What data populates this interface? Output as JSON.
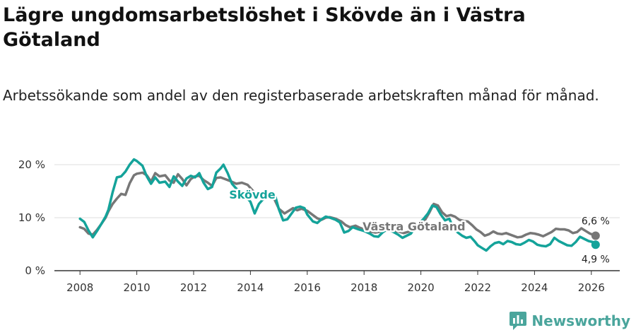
{
  "title": "Lägre ungdomsarbetslöshet i Skövde än i Västra Götaland",
  "subtitle": "Arbetssökande som andel av den registerbaserade arbetskraften månad för månad.",
  "brand": {
    "name": "Newsworthy"
  },
  "colors": {
    "skovde": "#14a39a",
    "vastra_gotaland": "#777777",
    "grid": "#dddddd"
  },
  "chart_data": {
    "type": "line",
    "title": "Lägre ungdomsarbetslöshet i Skövde än i Västra Götaland",
    "subtitle": "Arbetssökande som andel av den registerbaserade arbetskraften månad för månad.",
    "x_ticks": [
      "2008",
      "2010",
      "2012",
      "2014",
      "2016",
      "2018",
      "2020",
      "2022",
      "2024",
      "2026"
    ],
    "y_ticks": [
      {
        "value": 0,
        "label": "0 %"
      },
      {
        "value": 10,
        "label": "10 %"
      },
      {
        "value": 20,
        "label": "20 %"
      }
    ],
    "xlim": [
      2007.1,
      2027.0
    ],
    "ylim": [
      0,
      22
    ],
    "grid": true,
    "series": [
      {
        "name": "Skövde",
        "color": "#14a39a",
        "end_label": "4,9 %",
        "points": [
          [
            2008.0,
            9.8
          ],
          [
            2008.15,
            9.2
          ],
          [
            2008.3,
            7.6
          ],
          [
            2008.45,
            6.3
          ],
          [
            2008.6,
            7.5
          ],
          [
            2008.75,
            8.8
          ],
          [
            2008.9,
            10.2
          ],
          [
            2009.0,
            11.5
          ],
          [
            2009.15,
            14.8
          ],
          [
            2009.3,
            17.6
          ],
          [
            2009.45,
            17.8
          ],
          [
            2009.6,
            18.7
          ],
          [
            2009.75,
            20.0
          ],
          [
            2009.9,
            21.0
          ],
          [
            2010.0,
            20.7
          ],
          [
            2010.2,
            19.8
          ],
          [
            2010.35,
            17.8
          ],
          [
            2010.5,
            16.4
          ],
          [
            2010.65,
            17.6
          ],
          [
            2010.8,
            16.6
          ],
          [
            2011.0,
            16.8
          ],
          [
            2011.15,
            15.8
          ],
          [
            2011.3,
            17.8
          ],
          [
            2011.45,
            16.8
          ],
          [
            2011.6,
            16.0
          ],
          [
            2011.75,
            17.4
          ],
          [
            2011.9,
            17.9
          ],
          [
            2012.05,
            17.6
          ],
          [
            2012.2,
            18.4
          ],
          [
            2012.35,
            16.6
          ],
          [
            2012.5,
            15.4
          ],
          [
            2012.65,
            15.8
          ],
          [
            2012.8,
            18.5
          ],
          [
            2012.95,
            19.3
          ],
          [
            2013.05,
            20.0
          ],
          [
            2013.2,
            18.4
          ],
          [
            2013.35,
            16.4
          ],
          [
            2013.5,
            15.5
          ],
          [
            2013.65,
            15.0
          ],
          [
            2013.8,
            14.2
          ],
          [
            2014.0,
            13.0
          ],
          [
            2014.15,
            10.8
          ],
          [
            2014.3,
            12.6
          ],
          [
            2014.5,
            13.8
          ],
          [
            2014.7,
            14.8
          ],
          [
            2014.85,
            14.5
          ],
          [
            2015.0,
            11.6
          ],
          [
            2015.15,
            9.5
          ],
          [
            2015.3,
            9.7
          ],
          [
            2015.45,
            10.8
          ],
          [
            2015.6,
            11.9
          ],
          [
            2015.75,
            12.1
          ],
          [
            2015.9,
            11.8
          ],
          [
            2016.0,
            10.6
          ],
          [
            2016.2,
            9.3
          ],
          [
            2016.35,
            9.0
          ],
          [
            2016.5,
            9.7
          ],
          [
            2016.65,
            10.2
          ],
          [
            2016.8,
            10.0
          ],
          [
            2017.0,
            9.6
          ],
          [
            2017.15,
            9.1
          ],
          [
            2017.3,
            7.2
          ],
          [
            2017.45,
            7.5
          ],
          [
            2017.6,
            8.2
          ],
          [
            2017.8,
            7.8
          ],
          [
            2018.0,
            7.5
          ],
          [
            2018.2,
            7.0
          ],
          [
            2018.35,
            6.5
          ],
          [
            2018.5,
            6.4
          ],
          [
            2018.65,
            7.2
          ],
          [
            2018.8,
            7.8
          ],
          [
            2019.0,
            7.4
          ],
          [
            2019.2,
            6.8
          ],
          [
            2019.35,
            6.2
          ],
          [
            2019.5,
            6.6
          ],
          [
            2019.65,
            7.0
          ],
          [
            2019.8,
            8.2
          ],
          [
            2019.95,
            9.0
          ],
          [
            2020.1,
            9.8
          ],
          [
            2020.25,
            10.8
          ],
          [
            2020.4,
            12.3
          ],
          [
            2020.55,
            12.0
          ],
          [
            2020.7,
            10.6
          ],
          [
            2020.85,
            9.5
          ],
          [
            2021.0,
            9.8
          ],
          [
            2021.15,
            8.0
          ],
          [
            2021.3,
            7.2
          ],
          [
            2021.45,
            6.6
          ],
          [
            2021.6,
            6.2
          ],
          [
            2021.75,
            6.4
          ],
          [
            2021.9,
            5.5
          ],
          [
            2022.0,
            4.8
          ],
          [
            2022.15,
            4.3
          ],
          [
            2022.3,
            3.8
          ],
          [
            2022.45,
            4.6
          ],
          [
            2022.6,
            5.2
          ],
          [
            2022.75,
            5.4
          ],
          [
            2022.9,
            5.0
          ],
          [
            2023.05,
            5.6
          ],
          [
            2023.2,
            5.4
          ],
          [
            2023.35,
            5.0
          ],
          [
            2023.5,
            4.9
          ],
          [
            2023.65,
            5.3
          ],
          [
            2023.8,
            5.8
          ],
          [
            2023.95,
            5.5
          ],
          [
            2024.1,
            4.9
          ],
          [
            2024.25,
            4.7
          ],
          [
            2024.4,
            4.6
          ],
          [
            2024.55,
            5.0
          ],
          [
            2024.7,
            6.2
          ],
          [
            2024.85,
            5.6
          ],
          [
            2025.0,
            5.2
          ],
          [
            2025.15,
            4.8
          ],
          [
            2025.3,
            4.7
          ],
          [
            2025.45,
            5.4
          ],
          [
            2025.6,
            6.4
          ],
          [
            2025.75,
            6.0
          ],
          [
            2025.9,
            5.6
          ],
          [
            2026.05,
            5.4
          ],
          [
            2026.15,
            4.9
          ]
        ]
      },
      {
        "name": "Västra Götaland",
        "color": "#777777",
        "end_label": "6,6 %",
        "points": [
          [
            2008.0,
            8.2
          ],
          [
            2008.15,
            7.9
          ],
          [
            2008.3,
            7.0
          ],
          [
            2008.45,
            6.8
          ],
          [
            2008.6,
            7.7
          ],
          [
            2008.75,
            8.8
          ],
          [
            2008.9,
            10.0
          ],
          [
            2009.0,
            11.2
          ],
          [
            2009.15,
            12.6
          ],
          [
            2009.3,
            13.6
          ],
          [
            2009.45,
            14.5
          ],
          [
            2009.6,
            14.3
          ],
          [
            2009.75,
            16.5
          ],
          [
            2009.9,
            18.0
          ],
          [
            2010.0,
            18.3
          ],
          [
            2010.2,
            18.5
          ],
          [
            2010.35,
            18.0
          ],
          [
            2010.5,
            16.8
          ],
          [
            2010.65,
            18.4
          ],
          [
            2010.8,
            17.8
          ],
          [
            2011.0,
            18.0
          ],
          [
            2011.15,
            17.0
          ],
          [
            2011.3,
            16.6
          ],
          [
            2011.45,
            18.2
          ],
          [
            2011.6,
            17.3
          ],
          [
            2011.75,
            16.1
          ],
          [
            2011.9,
            17.3
          ],
          [
            2012.05,
            17.8
          ],
          [
            2012.2,
            17.9
          ],
          [
            2012.35,
            17.1
          ],
          [
            2012.5,
            16.6
          ],
          [
            2012.65,
            16.0
          ],
          [
            2012.8,
            17.5
          ],
          [
            2012.95,
            17.6
          ],
          [
            2013.1,
            17.3
          ],
          [
            2013.3,
            16.9
          ],
          [
            2013.5,
            16.4
          ],
          [
            2013.7,
            16.6
          ],
          [
            2013.9,
            16.2
          ],
          [
            2014.1,
            15.0
          ],
          [
            2014.3,
            13.9
          ],
          [
            2014.5,
            13.5
          ],
          [
            2014.7,
            14.0
          ],
          [
            2014.85,
            13.4
          ],
          [
            2015.0,
            11.7
          ],
          [
            2015.2,
            10.8
          ],
          [
            2015.35,
            11.3
          ],
          [
            2015.5,
            11.8
          ],
          [
            2015.65,
            11.4
          ],
          [
            2015.8,
            11.7
          ],
          [
            2016.0,
            11.3
          ],
          [
            2016.2,
            10.5
          ],
          [
            2016.35,
            9.9
          ],
          [
            2016.5,
            9.6
          ],
          [
            2016.65,
            10.0
          ],
          [
            2016.8,
            10.1
          ],
          [
            2017.0,
            9.8
          ],
          [
            2017.2,
            9.3
          ],
          [
            2017.35,
            8.6
          ],
          [
            2017.5,
            8.2
          ],
          [
            2017.7,
            8.5
          ],
          [
            2017.85,
            8.1
          ],
          [
            2018.0,
            7.8
          ],
          [
            2018.2,
            7.4
          ],
          [
            2018.4,
            7.2
          ],
          [
            2018.6,
            7.4
          ],
          [
            2018.8,
            7.6
          ],
          [
            2019.0,
            7.5
          ],
          [
            2019.2,
            7.4
          ],
          [
            2019.4,
            7.1
          ],
          [
            2019.6,
            7.4
          ],
          [
            2019.8,
            7.9
          ],
          [
            2020.0,
            8.6
          ],
          [
            2020.15,
            9.6
          ],
          [
            2020.3,
            11.0
          ],
          [
            2020.45,
            12.6
          ],
          [
            2020.6,
            12.3
          ],
          [
            2020.75,
            11.0
          ],
          [
            2020.9,
            10.3
          ],
          [
            2021.05,
            10.5
          ],
          [
            2021.2,
            10.2
          ],
          [
            2021.35,
            9.6
          ],
          [
            2021.5,
            9.4
          ],
          [
            2021.65,
            9.3
          ],
          [
            2021.8,
            8.6
          ],
          [
            2021.95,
            7.8
          ],
          [
            2022.1,
            7.3
          ],
          [
            2022.25,
            6.6
          ],
          [
            2022.4,
            6.9
          ],
          [
            2022.55,
            7.4
          ],
          [
            2022.7,
            7.0
          ],
          [
            2022.85,
            6.9
          ],
          [
            2023.0,
            7.1
          ],
          [
            2023.2,
            6.7
          ],
          [
            2023.4,
            6.3
          ],
          [
            2023.55,
            6.4
          ],
          [
            2023.7,
            6.8
          ],
          [
            2023.85,
            7.1
          ],
          [
            2024.0,
            7.0
          ],
          [
            2024.15,
            6.8
          ],
          [
            2024.3,
            6.5
          ],
          [
            2024.45,
            6.9
          ],
          [
            2024.6,
            7.3
          ],
          [
            2024.75,
            7.9
          ],
          [
            2024.9,
            7.8
          ],
          [
            2025.05,
            7.8
          ],
          [
            2025.2,
            7.6
          ],
          [
            2025.35,
            7.1
          ],
          [
            2025.5,
            7.3
          ],
          [
            2025.65,
            8.0
          ],
          [
            2025.8,
            7.5
          ],
          [
            2025.95,
            7.0
          ],
          [
            2026.05,
            6.8
          ],
          [
            2026.15,
            6.6
          ]
        ]
      }
    ]
  }
}
